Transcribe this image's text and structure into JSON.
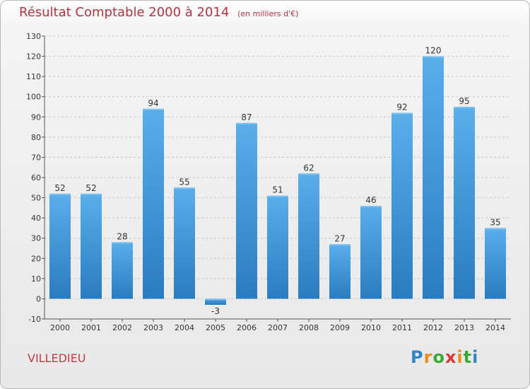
{
  "title": "Résultat Comptable 2000 à 2014",
  "subtitle": "(en milliers d'€)",
  "city": "VILLEDIEU",
  "logo_text": "Proxiti",
  "colors": {
    "bar_light": "#5aaeea",
    "bar_dark": "#2a7cc0",
    "title": "#b2343f",
    "grid": "#c8c8c8"
  },
  "chart_data": {
    "type": "bar",
    "categories": [
      "2000",
      "2001",
      "2002",
      "2003",
      "2004",
      "2005",
      "2006",
      "2007",
      "2008",
      "2009",
      "2010",
      "2011",
      "2012",
      "2013",
      "2014"
    ],
    "values": [
      52,
      52,
      28,
      94,
      55,
      -3,
      87,
      51,
      62,
      27,
      46,
      92,
      120,
      95,
      35
    ],
    "ylim": [
      -10,
      130
    ],
    "yticks": [
      -10,
      0,
      10,
      20,
      30,
      40,
      50,
      60,
      70,
      80,
      90,
      100,
      110,
      120,
      130
    ],
    "grid": true,
    "title": "Résultat Comptable 2000 à 2014",
    "xlabel": "",
    "ylabel": ""
  }
}
